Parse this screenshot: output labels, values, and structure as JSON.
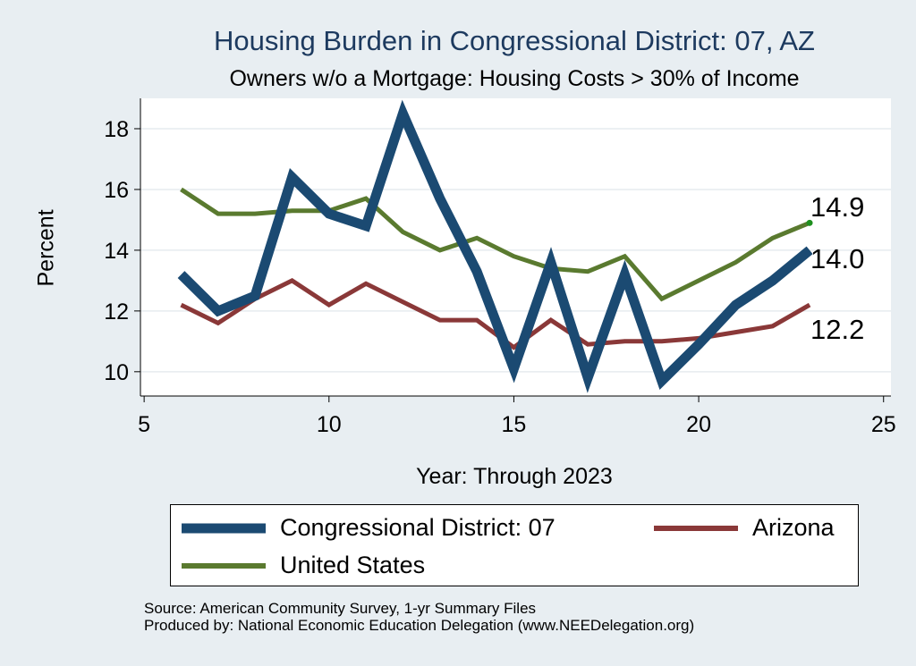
{
  "chart_data": {
    "type": "line",
    "title": "Housing Burden in Congressional District:  07, AZ",
    "subtitle": "Owners w/o a Mortgage: Housing Costs > 30% of Income",
    "xlabel": "Year: Through 2023",
    "ylabel": "Percent",
    "xlim": [
      4.9,
      25.2
    ],
    "ylim": [
      9.2,
      19.0
    ],
    "xticks": [
      5,
      10,
      15,
      20,
      25
    ],
    "yticks": [
      10,
      12,
      14,
      16,
      18
    ],
    "grid": true,
    "legend_position": "bottom",
    "series": [
      {
        "name": "Congressional District:  07",
        "color": "#1b4a72",
        "x": [
          6,
          7,
          8,
          9,
          10,
          11,
          12,
          13,
          14,
          15,
          16,
          17,
          18,
          19,
          20,
          21,
          22,
          23
        ],
        "values": [
          13.2,
          12.0,
          12.5,
          16.4,
          15.2,
          14.8,
          18.5,
          15.7,
          13.3,
          10.1,
          13.6,
          9.8,
          13.2,
          9.7,
          10.9,
          12.2,
          13.0,
          14.0
        ],
        "end_label": "14.0"
      },
      {
        "name": "Arizona",
        "color": "#8a3838",
        "x": [
          6,
          7,
          8,
          9,
          10,
          11,
          12,
          13,
          14,
          15,
          16,
          17,
          18,
          19,
          20,
          21,
          22,
          23
        ],
        "values": [
          12.2,
          11.6,
          12.4,
          13.0,
          12.2,
          12.9,
          12.3,
          11.7,
          11.7,
          10.8,
          11.7,
          10.9,
          11.0,
          11.0,
          11.1,
          11.3,
          11.5,
          12.2
        ],
        "end_label": "12.2"
      },
      {
        "name": "United States",
        "color": "#5a7a2f",
        "x": [
          6,
          7,
          8,
          9,
          10,
          11,
          12,
          13,
          14,
          15,
          16,
          17,
          18,
          19,
          20,
          21,
          22,
          23
        ],
        "values": [
          16.0,
          15.2,
          15.2,
          15.3,
          15.3,
          15.7,
          14.6,
          14.0,
          14.4,
          13.8,
          13.4,
          13.3,
          13.8,
          12.4,
          13.0,
          13.6,
          14.4,
          14.9
        ],
        "end_label": "14.9"
      }
    ]
  },
  "source_line": "Source: American Community Survey, 1-yr Summary Files",
  "produced_line": "Produced by: National Economic Education Delegation (www.NEEDelegation.org)"
}
